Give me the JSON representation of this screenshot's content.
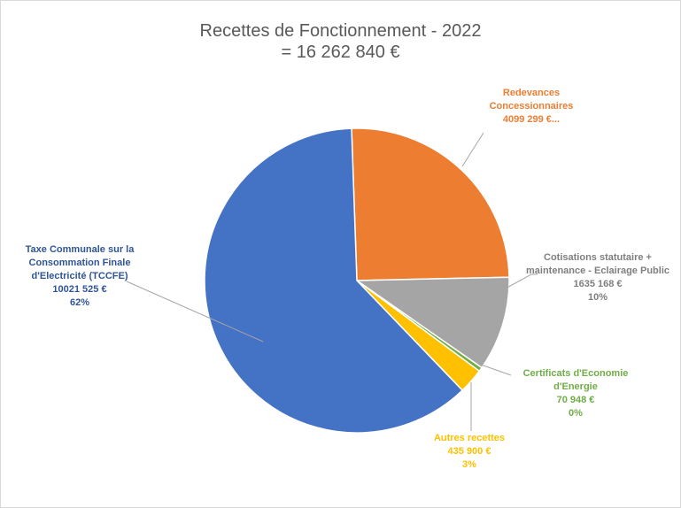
{
  "chart_data": {
    "type": "pie",
    "title": "Recettes de Fonctionnement - 2022",
    "subtitle": "= 16 262 840 €",
    "categories": [
      "Redevances Concessionnaires",
      "Cotisations statutaire + maintenance - Eclairage Public",
      "Certificats d'Economie d'Energie",
      "Autres recettes",
      "Taxe Communale sur la Consommation Finale d'Electricité (TCCFE)"
    ],
    "values": [
      4099299,
      1635168,
      70948,
      435900,
      10021525
    ],
    "value_labels": [
      "4099 299 €...",
      "1635 168 €",
      "70 948 €",
      "435 900 €",
      "10021 525 €"
    ],
    "percent_labels": [
      null,
      "10%",
      "0%",
      "3%",
      "62%"
    ],
    "colors": [
      "#ed7d31",
      "#a5a5a5",
      "#70ad47",
      "#ffc000",
      "#4472c4"
    ],
    "label_colors": [
      "#ed7d31",
      "#7f7f7f",
      "#70ad47",
      "#ffc000",
      "#2f5597"
    ]
  }
}
